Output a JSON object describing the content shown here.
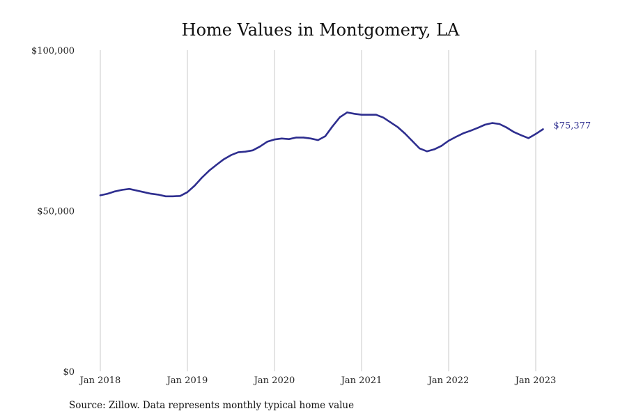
{
  "source_note": "Source: Zillow. Data represents monthly typical home value",
  "colors": {
    "line": "#2e2e8f",
    "grid": "#c8c8c8",
    "text": "#111111"
  },
  "chart_data": {
    "type": "line",
    "title": "Home Values in Montgomery, LA",
    "xlabel": "",
    "ylabel": "",
    "ylim": [
      0,
      100000
    ],
    "y_ticks": [
      0,
      50000,
      100000
    ],
    "y_tick_labels": [
      "$0",
      "$50,000",
      "$100,000"
    ],
    "x_ticks": [
      "2018-01",
      "2019-01",
      "2020-01",
      "2021-01",
      "2022-01",
      "2023-01"
    ],
    "x_tick_labels": [
      "Jan 2018",
      "Jan 2019",
      "Jan 2020",
      "Jan 2021",
      "Jan 2022",
      "Jan 2023"
    ],
    "grid": "vertical lines at x ticks",
    "legend": "none",
    "end_label": "$75,377",
    "series": [
      {
        "x": [
          "2018-01",
          "2018-02",
          "2018-03",
          "2018-04",
          "2018-05",
          "2018-06",
          "2018-07",
          "2018-08",
          "2018-09",
          "2018-10",
          "2018-11",
          "2018-12",
          "2019-01",
          "2019-02",
          "2019-03",
          "2019-04",
          "2019-05",
          "2019-06",
          "2019-07",
          "2019-08",
          "2019-09",
          "2019-10",
          "2019-11",
          "2019-12",
          "2020-01",
          "2020-02",
          "2020-03",
          "2020-04",
          "2020-05",
          "2020-06",
          "2020-07",
          "2020-08",
          "2020-09",
          "2020-10",
          "2020-11",
          "2020-12",
          "2021-01",
          "2021-02",
          "2021-03",
          "2021-04",
          "2021-05",
          "2021-06",
          "2021-07",
          "2021-08",
          "2021-09",
          "2021-10",
          "2021-11",
          "2021-12",
          "2022-01",
          "2022-02",
          "2022-03",
          "2022-04",
          "2022-05",
          "2022-06",
          "2022-07",
          "2022-08",
          "2022-09",
          "2022-10",
          "2022-11",
          "2022-12",
          "2023-01",
          "2023-02"
        ],
        "values": [
          54800,
          55300,
          56000,
          56500,
          56800,
          56300,
          55800,
          55300,
          55000,
          54500,
          54500,
          54600,
          55800,
          57800,
          60300,
          62500,
          64300,
          66000,
          67300,
          68200,
          68400,
          68800,
          70000,
          71500,
          72200,
          72500,
          72300,
          72800,
          72800,
          72500,
          72000,
          73200,
          76300,
          79100,
          80600,
          80200,
          79900,
          79900,
          79900,
          79000,
          77500,
          76000,
          74000,
          71700,
          69400,
          68500,
          69100,
          70200,
          71800,
          73000,
          74100,
          74900,
          75800,
          76800,
          77300,
          77000,
          75900,
          74500,
          73500,
          72600,
          73900,
          75377
        ]
      }
    ]
  }
}
